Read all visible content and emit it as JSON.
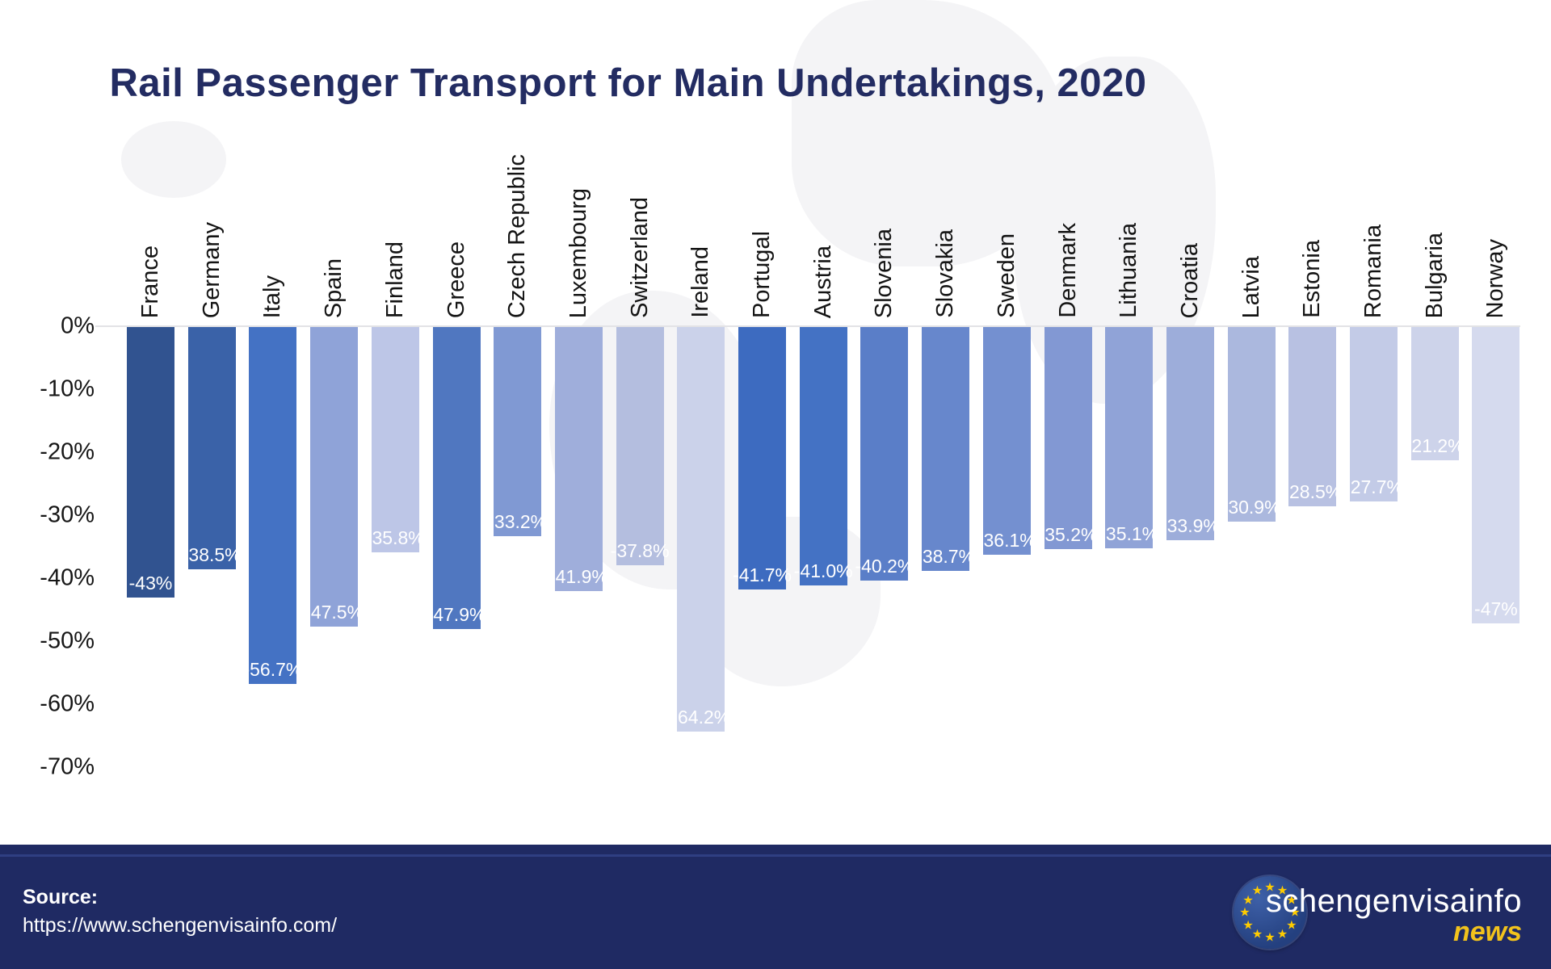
{
  "title": "Rail Passenger Transport for Main Undertakings, 2020",
  "chart_data": {
    "type": "bar",
    "orientation": "vertical",
    "title": "Rail Passenger Transport for Main Undertakings, 2020",
    "xlabel": "",
    "ylabel": "",
    "ylim": [
      -70,
      0
    ],
    "grid": false,
    "legend": "none",
    "yticks": [
      "0%",
      "-10%",
      "-20%",
      "-30%",
      "-40%",
      "-50%",
      "-60%",
      "-70%"
    ],
    "categories": [
      "France",
      "Germany",
      "Italy",
      "Spain",
      "Finland",
      "Greece",
      "Czech Republic",
      "Luxembourg",
      "Switzerland",
      "Ireland",
      "Portugal",
      "Austria",
      "Slovenia",
      "Slovakia",
      "Sweden",
      "Denmark",
      "Lithuania",
      "Croatia",
      "Latvia",
      "Estonia",
      "Romania",
      "Bulgaria",
      "Norway"
    ],
    "values": [
      -43,
      -38.5,
      -56.7,
      -47.5,
      -35.8,
      -47.9,
      -33.2,
      -41.9,
      -37.8,
      -64.2,
      -41.7,
      -41.0,
      -40.2,
      -38.7,
      -36.1,
      -35.2,
      -35.1,
      -33.9,
      -30.9,
      -28.5,
      -27.7,
      -21.2,
      -47
    ],
    "value_labels": [
      "-43%",
      "-38.5%",
      "-56.7%",
      "-47.5%",
      "-35.8%",
      "-47.9%",
      "-33.2%",
      "-41.9%",
      "-37.8%",
      "-64.2%",
      "-41.7%",
      "-41.0%",
      "-40.2%",
      "-38.7%",
      "-36.1%",
      "-35.2%",
      "-35.1%",
      "-33.9%",
      "-30.9%",
      "-28.5%",
      "-27.7%",
      "-21.2%",
      "-47%"
    ],
    "bar_colors": [
      "#315390",
      "#3A62A8",
      "#4472C4",
      "#8FA3D8",
      "#BDC6E7",
      "#5077C0",
      "#8099D3",
      "#9FAEDB",
      "#B4BEDF",
      "#CBD2EA",
      "#3D6BC0",
      "#4472C4",
      "#5A7EC8",
      "#6787CC",
      "#7490D0",
      "#8298D3",
      "#90A3D7",
      "#9DADDA",
      "#ABB8DE",
      "#B8C1E2",
      "#C3CBE7",
      "#CDD3EA",
      "#D5DAEE"
    ],
    "value_label_color": "#ffffff"
  },
  "footer": {
    "source_label": "Source:",
    "source_url": "https://www.schengenvisainfo.com/",
    "brand": "schengenvisainfo",
    "brand_sub": "news",
    "background": "#1F2A63",
    "brand_color": "#ffffff",
    "brand_sub_color": "#F2C21C",
    "logo_icon": "eu-stars-icon",
    "logo_star_color": "#FFCC00",
    "logo_star_count": 12
  },
  "colors": {
    "title": "#232C62",
    "axis_text": "#161616",
    "baseline": "#E3E3E6"
  }
}
